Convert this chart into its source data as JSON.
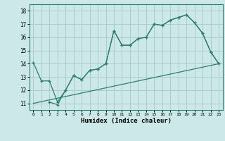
{
  "xlabel": "Humidex (Indice chaleur)",
  "xlim": [
    -0.5,
    23.5
  ],
  "ylim": [
    10.5,
    18.5
  ],
  "yticks": [
    11,
    12,
    13,
    14,
    15,
    16,
    17,
    18
  ],
  "xticks": [
    0,
    1,
    2,
    3,
    4,
    5,
    6,
    7,
    8,
    9,
    10,
    11,
    12,
    13,
    14,
    15,
    16,
    17,
    18,
    19,
    20,
    21,
    22,
    23
  ],
  "bg_color": "#cce8e8",
  "line_color": "#2e7d6e",
  "grid_color": "#aacccc",
  "line1_x": [
    0,
    1,
    2,
    3,
    4,
    5,
    6,
    7,
    8,
    9,
    10,
    11,
    12,
    13,
    14,
    15,
    16,
    17,
    18,
    19,
    20,
    21,
    22,
    23
  ],
  "line1_y": [
    14.1,
    12.7,
    12.7,
    11.1,
    12.0,
    13.1,
    12.8,
    13.5,
    13.6,
    14.0,
    16.5,
    15.4,
    15.4,
    15.9,
    16.0,
    17.0,
    16.9,
    17.3,
    17.5,
    17.7,
    17.1,
    16.3,
    14.9,
    14.0
  ],
  "line2_x": [
    2,
    3,
    4,
    5,
    6,
    7,
    8,
    9,
    10,
    11,
    12,
    13,
    14,
    15,
    16,
    17,
    18,
    19,
    20,
    21,
    22,
    23
  ],
  "line2_y": [
    11.1,
    10.9,
    12.0,
    13.1,
    12.8,
    13.5,
    13.6,
    14.0,
    16.5,
    15.4,
    15.4,
    15.9,
    16.0,
    17.0,
    16.9,
    17.3,
    17.5,
    17.7,
    17.1,
    16.3,
    14.9,
    14.0
  ],
  "line3_x": [
    0,
    23
  ],
  "line3_y": [
    11.0,
    14.0
  ]
}
